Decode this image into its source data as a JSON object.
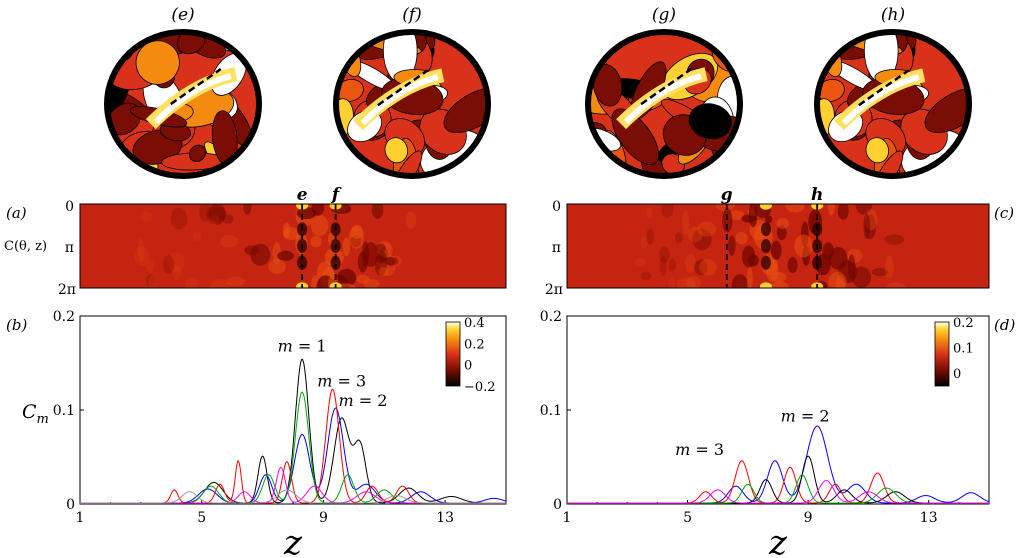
{
  "colors": {
    "heatmap_base": "#c0200c",
    "heatmap_dark": "#7a0d04",
    "heatmap_bright": "#ffd030",
    "disk_outer": "#000000",
    "disk_fill": "#d8331a",
    "series": {
      "m=1": "#000000",
      "m=2": "#0000ff",
      "m=3": "#ff0000",
      "green": "#00aa00",
      "magenta": "#ff00ff",
      "grey": "#999999"
    }
  },
  "disks": [
    {
      "label": "(e)",
      "seed": 3
    },
    {
      "label": "(f)",
      "seed": 7
    },
    {
      "label": "(g)",
      "seed": 11
    },
    {
      "label": "(h)",
      "seed": 7
    }
  ],
  "panel_labels": {
    "a": "(a)",
    "b": "(b)",
    "c": "(c)",
    "d": "(d)"
  },
  "heatmap_ylabel": "C(θ, z)",
  "heatmap_ticks": [
    "0",
    "π",
    "2π"
  ],
  "cut_labels": {
    "left": [
      "e",
      "f"
    ],
    "right": [
      "g",
      "h"
    ]
  },
  "chart_data": [
    {
      "type": "heatmap",
      "panel": "(a)",
      "ylabel": "C(θ, z)",
      "y_ticks": [
        "0",
        "π",
        "2π"
      ],
      "xlim": [
        1,
        15
      ],
      "cuts": [
        {
          "label": "e",
          "z": 8.3
        },
        {
          "label": "f",
          "z": 9.4
        }
      ]
    },
    {
      "type": "heatmap",
      "panel": "(c)",
      "y_ticks": [
        "0",
        "π",
        "2π"
      ],
      "xlim": [
        1,
        15
      ],
      "cuts": [
        {
          "label": "g",
          "z": 6.3
        },
        {
          "label": "h",
          "z": 9.3
        }
      ]
    },
    {
      "type": "line",
      "panel": "(b)",
      "ylabel": "C_m",
      "xlabel": "z",
      "xlim": [
        1,
        15
      ],
      "ylim": [
        0,
        0.2
      ],
      "x_ticks": [
        1,
        5,
        9,
        13
      ],
      "y_ticks": [
        0,
        0.1,
        0.2
      ],
      "annotations": [
        {
          "text": "m = 1",
          "x": 8.3,
          "y": 0.162
        },
        {
          "text": "m = 3",
          "x": 9.6,
          "y": 0.125
        },
        {
          "text": "m = 2",
          "x": 10.3,
          "y": 0.104
        }
      ],
      "colorbar": {
        "ticks": [
          "0.4",
          "0.2",
          "0",
          "−0.2"
        ],
        "range": [
          -0.2,
          0.4
        ]
      },
      "series": [
        {
          "name": "m=1",
          "color": "#000000",
          "peaks": [
            [
              8.3,
              0.153,
              0.22
            ],
            [
              9.6,
              0.09,
              0.25
            ],
            [
              10.2,
              0.061,
              0.2
            ],
            [
              7.0,
              0.05,
              0.15
            ],
            [
              5.4,
              0.022,
              0.3
            ],
            [
              11.8,
              0.016,
              0.3
            ],
            [
              13.2,
              0.007,
              0.35
            ]
          ]
        },
        {
          "name": "m=2",
          "color": "#0000ff",
          "peaks": [
            [
              9.4,
              0.101,
              0.26
            ],
            [
              8.3,
              0.073,
              0.25
            ],
            [
              7.1,
              0.03,
              0.2
            ],
            [
              10.4,
              0.02,
              0.3
            ],
            [
              5.2,
              0.015,
              0.3
            ],
            [
              12.2,
              0.012,
              0.3
            ],
            [
              14.6,
              0.005,
              0.3
            ]
          ]
        },
        {
          "name": "m=3",
          "color": "#ff0000",
          "peaks": [
            [
              9.3,
              0.121,
              0.22
            ],
            [
              7.8,
              0.044,
              0.15
            ],
            [
              6.2,
              0.045,
              0.1
            ],
            [
              4.1,
              0.014,
              0.12
            ],
            [
              5.6,
              0.02,
              0.15
            ],
            [
              10.6,
              0.018,
              0.2
            ],
            [
              11.6,
              0.018,
              0.2
            ]
          ]
        },
        {
          "name": "green",
          "color": "#00aa00",
          "peaks": [
            [
              8.3,
              0.118,
              0.22
            ],
            [
              7.2,
              0.03,
              0.2
            ],
            [
              9.8,
              0.03,
              0.2
            ],
            [
              5.3,
              0.018,
              0.25
            ],
            [
              11.0,
              0.014,
              0.25
            ]
          ]
        },
        {
          "name": "magenta",
          "color": "#ff00ff",
          "peaks": [
            [
              8.7,
              0.018,
              0.25
            ],
            [
              7.6,
              0.038,
              0.15
            ],
            [
              6.4,
              0.012,
              0.2
            ],
            [
              10.4,
              0.012,
              0.3
            ]
          ]
        },
        {
          "name": "grey",
          "color": "#999999",
          "peaks": [
            [
              4.6,
              0.012,
              0.25
            ],
            [
              7.8,
              0.014,
              0.3
            ],
            [
              11.4,
              0.008,
              0.3
            ]
          ]
        }
      ]
    },
    {
      "type": "line",
      "panel": "(d)",
      "xlabel": "z",
      "xlim": [
        1,
        15
      ],
      "ylim": [
        0,
        0.2
      ],
      "x_ticks": [
        1,
        5,
        9,
        13
      ],
      "y_ticks": [
        0,
        0.1,
        0.2
      ],
      "annotations": [
        {
          "text": "m = 3",
          "x": 5.4,
          "y": 0.052
        },
        {
          "text": "m = 2",
          "x": 8.9,
          "y": 0.088
        }
      ],
      "colorbar": {
        "ticks": [
          "0.2",
          "0.1",
          "0"
        ],
        "range": [
          -0.05,
          0.2
        ]
      },
      "series": [
        {
          "name": "m=2",
          "color": "#0000ff",
          "peaks": [
            [
              9.3,
              0.082,
              0.35
            ],
            [
              7.9,
              0.045,
              0.25
            ],
            [
              6.6,
              0.018,
              0.25
            ],
            [
              10.6,
              0.02,
              0.3
            ],
            [
              12.9,
              0.008,
              0.3
            ],
            [
              14.4,
              0.011,
              0.3
            ]
          ]
        },
        {
          "name": "m=3",
          "color": "#ff0000",
          "peaks": [
            [
              6.8,
              0.045,
              0.22
            ],
            [
              8.4,
              0.038,
              0.2
            ],
            [
              11.3,
              0.032,
              0.22
            ],
            [
              5.6,
              0.012,
              0.2
            ],
            [
              9.9,
              0.02,
              0.2
            ]
          ]
        },
        {
          "name": "m=1",
          "color": "#000000",
          "peaks": [
            [
              9.0,
              0.05,
              0.2
            ],
            [
              7.6,
              0.025,
              0.2
            ],
            [
              11.9,
              0.012,
              0.3
            ],
            [
              10.2,
              0.014,
              0.25
            ]
          ]
        },
        {
          "name": "green",
          "color": "#00aa00",
          "peaks": [
            [
              8.8,
              0.03,
              0.2
            ],
            [
              7.0,
              0.02,
              0.2
            ],
            [
              11.6,
              0.016,
              0.3
            ]
          ]
        },
        {
          "name": "magenta",
          "color": "#ff00ff",
          "peaks": [
            [
              9.6,
              0.024,
              0.25
            ],
            [
              6.0,
              0.014,
              0.25
            ],
            [
              11.0,
              0.012,
              0.3
            ]
          ]
        }
      ]
    }
  ]
}
